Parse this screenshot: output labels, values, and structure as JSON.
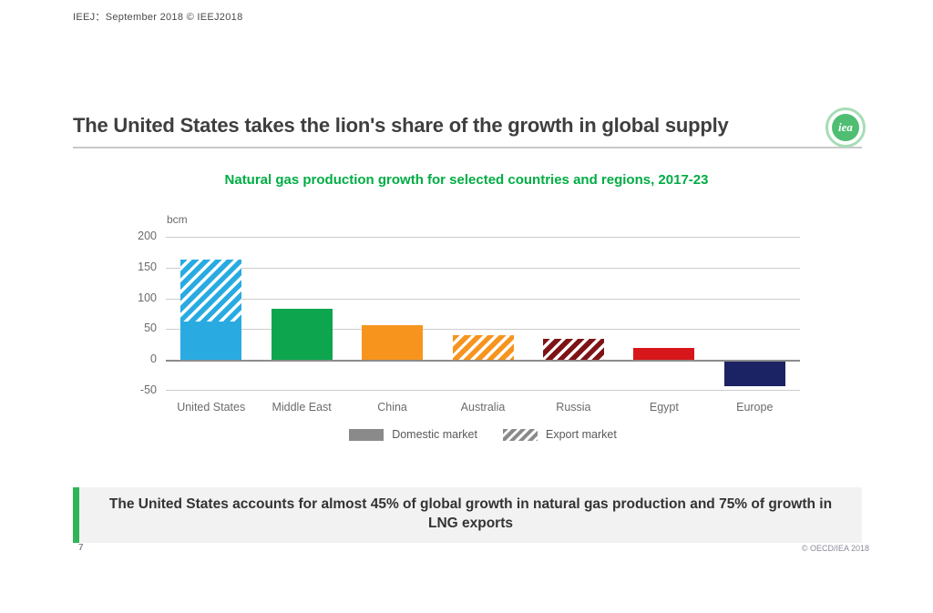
{
  "stamp_text": "IEEJ：September 2018 © IEEJ2018",
  "header": {
    "title": "The United States takes the lion's share of the growth in global supply",
    "logo_text": "iea"
  },
  "chart_data": {
    "type": "bar",
    "stacked": true,
    "title": "Natural gas production growth for selected countries and regions, 2017-23",
    "unit_label": "bcm",
    "categories": [
      "United States",
      "Middle East",
      "China",
      "Australia",
      "Russia",
      "Egypt",
      "Europe"
    ],
    "series": [
      {
        "name": "Domestic market",
        "pattern": "solid",
        "values": [
          63,
          83,
          56,
          0,
          0,
          19,
          -43
        ]
      },
      {
        "name": "Export market",
        "pattern": "hatch",
        "values": [
          100,
          0,
          0,
          40,
          35,
          0,
          0
        ]
      }
    ],
    "bar_colors": [
      "#29abe2",
      "#0da64f",
      "#f7941e",
      "#f7941e",
      "#7e1416",
      "#d7161b",
      "#1b2364"
    ],
    "ylim": [
      -50,
      200
    ],
    "yticks": [
      200,
      150,
      100,
      50,
      0,
      -50
    ],
    "ytick_interval": 50,
    "grid": true,
    "legend_position": "bottom"
  },
  "callout_text": "The United States accounts for almost 45% of global growth in natural gas production and 75% of growth in LNG exports",
  "footer": {
    "page_number": "7",
    "copyright": "© OECD/IEA 2018"
  },
  "colors": {
    "accent_green": "#2fb457",
    "chart_title_green": "#00ac44",
    "title_text": "#3f3f3f",
    "grid_line": "#cccccc",
    "zero_line": "#8c8c8c",
    "tick_text": "#6b6b6b",
    "legend_swatch_gray": "#8a8a8a"
  }
}
